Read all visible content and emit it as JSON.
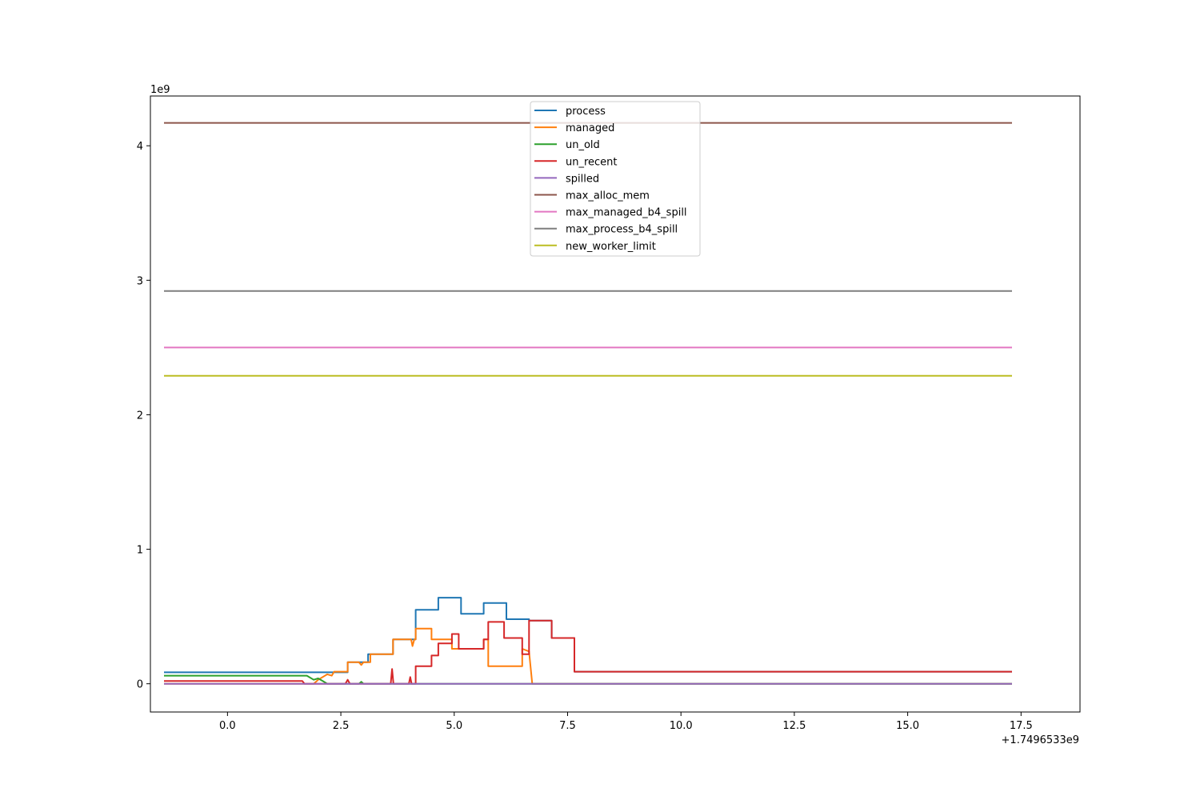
{
  "chart_data": {
    "type": "line",
    "title": "",
    "xlabel": "",
    "ylabel": "",
    "x_offset_label": "+1.7496533e9",
    "y_scale_label": "1e9",
    "xlim": [
      -1.7,
      18.8
    ],
    "ylim": [
      -0.21,
      4.37
    ],
    "x_ticks": [
      0.0,
      2.5,
      5.0,
      7.5,
      10.0,
      12.5,
      15.0,
      17.5
    ],
    "x_tick_labels": [
      "0.0",
      "2.5",
      "5.0",
      "7.5",
      "10.0",
      "12.5",
      "15.0",
      "17.5"
    ],
    "y_ticks": [
      0,
      1,
      2,
      3,
      4
    ],
    "y_tick_labels": [
      "0",
      "1",
      "2",
      "3",
      "4"
    ],
    "grid": false,
    "legend_position": "top-center",
    "series": [
      {
        "name": "process",
        "color": "#1f77b4",
        "points": [
          [
            -1.4,
            0.085
          ],
          [
            2.65,
            0.085
          ],
          [
            2.65,
            0.16
          ],
          [
            3.1,
            0.16
          ],
          [
            3.1,
            0.22
          ],
          [
            3.65,
            0.22
          ],
          [
            3.65,
            0.33
          ],
          [
            4.15,
            0.33
          ],
          [
            4.15,
            0.55
          ],
          [
            4.65,
            0.55
          ],
          [
            4.65,
            0.64
          ],
          [
            5.15,
            0.64
          ],
          [
            5.15,
            0.52
          ],
          [
            5.65,
            0.52
          ],
          [
            5.65,
            0.6
          ],
          [
            6.15,
            0.6
          ],
          [
            6.15,
            0.48
          ],
          [
            6.65,
            0.48
          ],
          [
            6.65,
            0.47
          ],
          [
            7.15,
            0.47
          ],
          [
            7.15,
            0.34
          ],
          [
            7.65,
            0.34
          ],
          [
            7.65,
            0.09
          ],
          [
            17.3,
            0.09
          ]
        ]
      },
      {
        "name": "managed",
        "color": "#ff7f0e",
        "points": [
          [
            -1.4,
            0.0
          ],
          [
            1.9,
            0.0
          ],
          [
            2.0,
            0.03
          ],
          [
            2.2,
            0.07
          ],
          [
            2.3,
            0.06
          ],
          [
            2.35,
            0.09
          ],
          [
            2.65,
            0.09
          ],
          [
            2.65,
            0.16
          ],
          [
            2.9,
            0.16
          ],
          [
            2.95,
            0.14
          ],
          [
            3.0,
            0.16
          ],
          [
            3.15,
            0.16
          ],
          [
            3.15,
            0.22
          ],
          [
            3.65,
            0.22
          ],
          [
            3.65,
            0.33
          ],
          [
            4.05,
            0.33
          ],
          [
            4.08,
            0.28
          ],
          [
            4.12,
            0.33
          ],
          [
            4.15,
            0.33
          ],
          [
            4.15,
            0.41
          ],
          [
            4.5,
            0.41
          ],
          [
            4.5,
            0.33
          ],
          [
            4.95,
            0.33
          ],
          [
            4.95,
            0.26
          ],
          [
            5.65,
            0.26
          ],
          [
            5.65,
            0.33
          ],
          [
            5.75,
            0.33
          ],
          [
            5.75,
            0.13
          ],
          [
            6.5,
            0.13
          ],
          [
            6.5,
            0.26
          ],
          [
            6.65,
            0.24
          ],
          [
            6.72,
            0.0
          ],
          [
            17.3,
            0.0
          ]
        ]
      },
      {
        "name": "un_old",
        "color": "#2ca02c",
        "points": [
          [
            -1.4,
            0.06
          ],
          [
            1.75,
            0.06
          ],
          [
            1.9,
            0.03
          ],
          [
            2.0,
            0.04
          ],
          [
            2.1,
            0.02
          ],
          [
            2.2,
            0.0
          ],
          [
            2.9,
            0.0
          ],
          [
            2.95,
            0.015
          ],
          [
            3.0,
            0.0
          ],
          [
            17.3,
            0.0
          ]
        ]
      },
      {
        "name": "un_recent",
        "color": "#d62728",
        "points": [
          [
            -1.4,
            0.02
          ],
          [
            1.65,
            0.02
          ],
          [
            1.7,
            0.0
          ],
          [
            2.6,
            0.0
          ],
          [
            2.65,
            0.03
          ],
          [
            2.7,
            0.0
          ],
          [
            3.6,
            0.0
          ],
          [
            3.63,
            0.11
          ],
          [
            3.66,
            0.0
          ],
          [
            4.0,
            0.0
          ],
          [
            4.03,
            0.05
          ],
          [
            4.06,
            0.0
          ],
          [
            4.15,
            0.0
          ],
          [
            4.15,
            0.13
          ],
          [
            4.5,
            0.13
          ],
          [
            4.5,
            0.21
          ],
          [
            4.65,
            0.21
          ],
          [
            4.65,
            0.3
          ],
          [
            4.95,
            0.3
          ],
          [
            4.95,
            0.37
          ],
          [
            5.1,
            0.37
          ],
          [
            5.1,
            0.26
          ],
          [
            5.65,
            0.26
          ],
          [
            5.65,
            0.33
          ],
          [
            5.75,
            0.33
          ],
          [
            5.75,
            0.46
          ],
          [
            6.1,
            0.46
          ],
          [
            6.1,
            0.34
          ],
          [
            6.5,
            0.34
          ],
          [
            6.5,
            0.22
          ],
          [
            6.65,
            0.22
          ],
          [
            6.65,
            0.47
          ],
          [
            7.15,
            0.47
          ],
          [
            7.15,
            0.34
          ],
          [
            7.65,
            0.34
          ],
          [
            7.65,
            0.09
          ],
          [
            17.3,
            0.09
          ]
        ]
      },
      {
        "name": "spilled",
        "color": "#9467bd",
        "points": [
          [
            -1.4,
            0.0
          ],
          [
            17.3,
            0.0
          ]
        ]
      },
      {
        "name": "max_alloc_mem",
        "color": "#8c564b",
        "points": [
          [
            -1.4,
            4.17
          ],
          [
            17.3,
            4.17
          ]
        ]
      },
      {
        "name": "max_managed_b4_spill",
        "color": "#e377c2",
        "points": [
          [
            -1.4,
            2.5
          ],
          [
            17.3,
            2.5
          ]
        ]
      },
      {
        "name": "max_process_b4_spill",
        "color": "#7f7f7f",
        "points": [
          [
            -1.4,
            2.92
          ],
          [
            17.3,
            2.92
          ]
        ]
      },
      {
        "name": "new_worker_limit",
        "color": "#bcbd22",
        "points": [
          [
            -1.4,
            2.29
          ],
          [
            17.3,
            2.29
          ]
        ]
      }
    ]
  }
}
